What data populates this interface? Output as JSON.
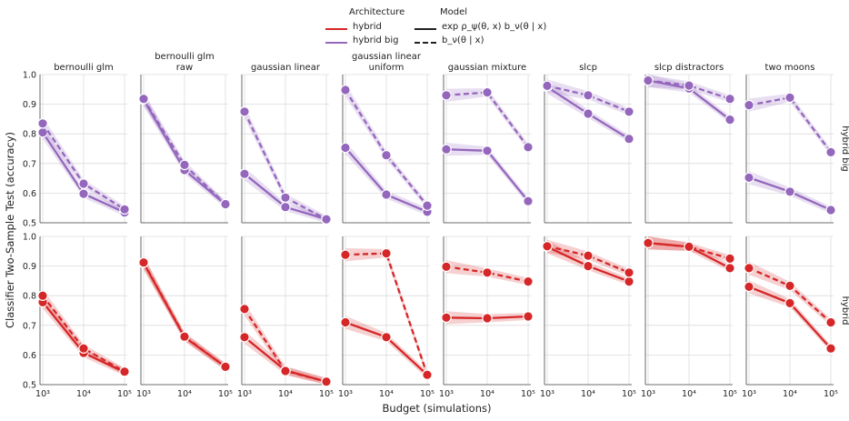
{
  "figure": {
    "xlabel": "Budget (simulations)",
    "ylabel": "Classifier Two-Sample Test (accuracy)",
    "legend": {
      "architecture_title": "Architecture",
      "architectures": [
        {
          "label": "hybrid",
          "color": "#d62728"
        },
        {
          "label": "hybrid big",
          "color": "#9467bd"
        }
      ],
      "model_title": "Model",
      "models": [
        {
          "label": "exp ρ_ψ(θ, x) b_ν(θ | x)",
          "style": "solid"
        },
        {
          "label": "b_ν(θ | x)",
          "style": "dashed"
        }
      ]
    },
    "row_labels": [
      "hybrid big",
      "hybrid"
    ],
    "column_titles": [
      [
        "bernoulli glm"
      ],
      [
        "bernoulli glm",
        "raw"
      ],
      [
        "gaussian linear"
      ],
      [
        "gaussian linear",
        "uniform"
      ],
      [
        "gaussian mixture"
      ],
      [
        "slcp"
      ],
      [
        "slcp distractors"
      ],
      [
        "two moons"
      ]
    ],
    "x_tick_labels": [
      "10³",
      "10⁴",
      "10⁵"
    ],
    "y_tick_labels": [
      "0.5",
      "0.6",
      "0.7",
      "0.8",
      "0.9",
      "1.0"
    ]
  },
  "chart_data": {
    "type": "line",
    "x": [
      1000,
      10000,
      100000
    ],
    "x_scale": "log",
    "ylim": [
      0.5,
      1.0
    ],
    "grid": true,
    "legend_position": "top-center",
    "panels": [
      {
        "row": "hybrid big",
        "column": "bernoulli glm",
        "color": "#9467bd",
        "series": [
          {
            "name": "exp ρ_ψ(θ, x) b_ν(θ | x)",
            "style": "solid",
            "values": [
              0.805,
              0.598,
              0.535
            ]
          },
          {
            "name": "b_ν(θ | x)",
            "style": "dashed",
            "values": [
              0.835,
              0.632,
              0.545
            ]
          }
        ]
      },
      {
        "row": "hybrid big",
        "column": "bernoulli glm raw",
        "color": "#9467bd",
        "series": [
          {
            "name": "exp ρ_ψ(θ, x) b_ν(θ | x)",
            "style": "solid",
            "values": [
              0.915,
              0.678,
              0.562
            ]
          },
          {
            "name": "b_ν(θ | x)",
            "style": "dashed",
            "values": [
              0.918,
              0.695,
              0.563
            ]
          }
        ]
      },
      {
        "row": "hybrid big",
        "column": "gaussian linear",
        "color": "#9467bd",
        "series": [
          {
            "name": "exp ρ_ψ(θ, x) b_ν(θ | x)",
            "style": "solid",
            "values": [
              0.665,
              0.553,
              0.512
            ]
          },
          {
            "name": "b_ν(θ | x)",
            "style": "dashed",
            "values": [
              0.875,
              0.585,
              0.512
            ]
          }
        ]
      },
      {
        "row": "hybrid big",
        "column": "gaussian linear uniform",
        "color": "#9467bd",
        "series": [
          {
            "name": "exp ρ_ψ(θ, x) b_ν(θ | x)",
            "style": "solid",
            "values": [
              0.753,
              0.595,
              0.537
            ]
          },
          {
            "name": "b_ν(θ | x)",
            "style": "dashed",
            "values": [
              0.948,
              0.728,
              0.558
            ]
          }
        ]
      },
      {
        "row": "hybrid big",
        "column": "gaussian mixture",
        "color": "#9467bd",
        "series": [
          {
            "name": "exp ρ_ψ(θ, x) b_ν(θ | x)",
            "style": "solid",
            "values": [
              0.748,
              0.743,
              0.573
            ]
          },
          {
            "name": "b_ν(θ | x)",
            "style": "dashed",
            "values": [
              0.93,
              0.94,
              0.755
            ]
          }
        ]
      },
      {
        "row": "hybrid big",
        "column": "slcp",
        "color": "#9467bd",
        "series": [
          {
            "name": "exp ρ_ψ(θ, x) b_ν(θ | x)",
            "style": "solid",
            "values": [
              0.958,
              0.868,
              0.783
            ]
          },
          {
            "name": "b_ν(θ | x)",
            "style": "dashed",
            "values": [
              0.962,
              0.93,
              0.875
            ]
          }
        ]
      },
      {
        "row": "hybrid big",
        "column": "slcp distractors",
        "color": "#9467bd",
        "series": [
          {
            "name": "exp ρ_ψ(θ, x) b_ν(θ | x)",
            "style": "solid",
            "values": [
              0.98,
              0.953,
              0.848
            ]
          },
          {
            "name": "b_ν(θ | x)",
            "style": "dashed",
            "values": [
              0.98,
              0.963,
              0.918
            ]
          }
        ]
      },
      {
        "row": "hybrid big",
        "column": "two moons",
        "color": "#9467bd",
        "series": [
          {
            "name": "exp ρ_ψ(θ, x) b_ν(θ | x)",
            "style": "solid",
            "values": [
              0.652,
              0.605,
              0.543
            ]
          },
          {
            "name": "b_ν(θ | x)",
            "style": "dashed",
            "values": [
              0.897,
              0.922,
              0.738
            ]
          }
        ]
      },
      {
        "row": "hybrid",
        "column": "bernoulli glm",
        "color": "#d62728",
        "series": [
          {
            "name": "exp ρ_ψ(θ, x) b_ν(θ | x)",
            "style": "solid",
            "values": [
              0.778,
              0.607,
              0.542
            ]
          },
          {
            "name": "b_ν(θ | x)",
            "style": "dashed",
            "values": [
              0.8,
              0.622,
              0.544
            ]
          }
        ]
      },
      {
        "row": "hybrid",
        "column": "bernoulli glm raw",
        "color": "#d62728",
        "series": [
          {
            "name": "exp ρ_ψ(θ, x) b_ν(θ | x)",
            "style": "solid",
            "values": [
              0.91,
              0.66,
              0.56
            ]
          },
          {
            "name": "b_ν(θ | x)",
            "style": "dashed",
            "values": [
              0.912,
              0.662,
              0.56
            ]
          }
        ]
      },
      {
        "row": "hybrid",
        "column": "gaussian linear",
        "color": "#d62728",
        "series": [
          {
            "name": "exp ρ_ψ(θ, x) b_ν(θ | x)",
            "style": "solid",
            "values": [
              0.66,
              0.548,
              0.51
            ]
          },
          {
            "name": "b_ν(θ | x)",
            "style": "dashed",
            "values": [
              0.755,
              0.546,
              0.51
            ]
          }
        ]
      },
      {
        "row": "hybrid",
        "column": "gaussian linear uniform",
        "color": "#d62728",
        "series": [
          {
            "name": "exp ρ_ψ(θ, x) b_ν(θ | x)",
            "style": "solid",
            "values": [
              0.71,
              0.66,
              0.533
            ]
          },
          {
            "name": "b_ν(θ | x)",
            "style": "dashed",
            "values": [
              0.938,
              0.943,
              0.533
            ]
          }
        ]
      },
      {
        "row": "hybrid",
        "column": "gaussian mixture",
        "color": "#d62728",
        "series": [
          {
            "name": "exp ρ_ψ(θ, x) b_ν(θ | x)",
            "style": "solid",
            "values": [
              0.726,
              0.724,
              0.73
            ]
          },
          {
            "name": "b_ν(θ | x)",
            "style": "dashed",
            "values": [
              0.898,
              0.878,
              0.848
            ]
          }
        ]
      },
      {
        "row": "hybrid",
        "column": "slcp",
        "color": "#d62728",
        "series": [
          {
            "name": "exp ρ_ψ(θ, x) b_ν(θ | x)",
            "style": "solid",
            "values": [
              0.965,
              0.9,
              0.848
            ]
          },
          {
            "name": "b_ν(θ | x)",
            "style": "dashed",
            "values": [
              0.967,
              0.935,
              0.878
            ]
          }
        ]
      },
      {
        "row": "hybrid",
        "column": "slcp distractors",
        "color": "#d62728",
        "series": [
          {
            "name": "exp ρ_ψ(θ, x) b_ν(θ | x)",
            "style": "solid",
            "values": [
              0.978,
              0.965,
              0.893
            ]
          },
          {
            "name": "b_ν(θ | x)",
            "style": "dashed",
            "values": [
              0.978,
              0.965,
              0.925
            ]
          }
        ]
      },
      {
        "row": "hybrid",
        "column": "two moons",
        "color": "#d62728",
        "series": [
          {
            "name": "exp ρ_ψ(θ, x) b_ν(θ | x)",
            "style": "solid",
            "values": [
              0.83,
              0.775,
              0.622
            ]
          },
          {
            "name": "b_ν(θ | x)",
            "style": "dashed",
            "values": [
              0.893,
              0.833,
              0.71
            ]
          }
        ]
      }
    ]
  }
}
